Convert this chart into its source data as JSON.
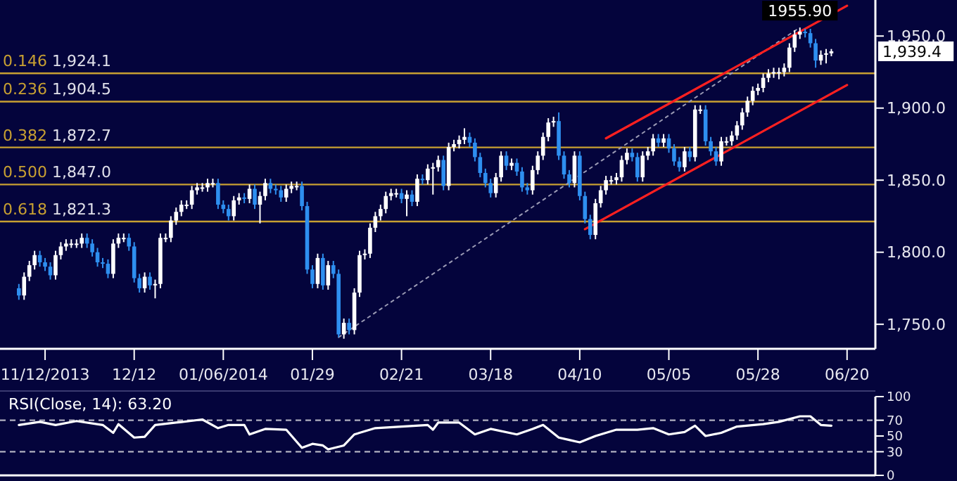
{
  "chart_data": [
    {
      "type": "candlestick",
      "categories": [
        null,
        null,
        null,
        null,
        null,
        "11/12/2013",
        null,
        null,
        null,
        null,
        null,
        null,
        null,
        null,
        null,
        null,
        null,
        null,
        null,
        null,
        null,
        null,
        "12/12",
        null,
        null,
        null,
        null,
        null,
        null,
        null,
        null,
        null,
        null,
        null,
        null,
        null,
        null,
        null,
        null,
        "01/06/2014",
        null,
        null,
        null,
        null,
        null,
        null,
        null,
        null,
        null,
        null,
        null,
        null,
        null,
        null,
        null,
        null,
        "01/29",
        null,
        null,
        null,
        null,
        null,
        null,
        null,
        null,
        null,
        null,
        null,
        null,
        null,
        null,
        null,
        null,
        "02/21",
        null,
        null,
        null,
        null,
        null,
        null,
        null,
        null,
        null,
        null,
        null,
        null,
        null,
        null,
        null,
        null,
        "03/18",
        null,
        null,
        null,
        null,
        null,
        null,
        null,
        null,
        null,
        null,
        null,
        null,
        null,
        null,
        null,
        null,
        "04/10",
        null,
        null,
        null,
        null,
        null,
        null,
        null,
        null,
        null,
        null,
        null,
        null,
        null,
        null,
        null,
        null,
        "05/05",
        null,
        null,
        null,
        null,
        null,
        null,
        null,
        null,
        null,
        null,
        null,
        null,
        null,
        null,
        null,
        null,
        "05/28",
        null,
        null,
        null,
        null,
        null,
        null,
        null,
        null,
        null,
        null,
        null,
        null,
        null,
        null,
        null,
        null,
        "06/20"
      ],
      "ohlc": [
        [
          1775,
          1778,
          1767,
          1770
        ],
        [
          1770,
          1786,
          1767,
          1783
        ],
        [
          1783,
          1794,
          1780,
          1791
        ],
        [
          1791,
          1801,
          1788,
          1798
        ],
        [
          1798,
          1801,
          1790,
          1793
        ],
        [
          1793,
          1796,
          1787,
          1790
        ],
        [
          1790,
          1793,
          1781,
          1784
        ],
        [
          1784,
          1801,
          1781,
          1798
        ],
        [
          1798,
          1807,
          1795,
          1804
        ],
        [
          1804,
          1809,
          1801,
          1806
        ],
        [
          1806,
          1809,
          1803,
          1806
        ],
        [
          1806,
          1809,
          1803,
          1806
        ],
        [
          1806,
          1813,
          1803,
          1810
        ],
        [
          1810,
          1813,
          1803,
          1806
        ],
        [
          1806,
          1809,
          1797,
          1800
        ],
        [
          1800,
          1803,
          1790,
          1793
        ],
        [
          1793,
          1796,
          1789,
          1792
        ],
        [
          1792,
          1795,
          1782,
          1785
        ],
        [
          1785,
          1809,
          1782,
          1806
        ],
        [
          1806,
          1813,
          1803,
          1810
        ],
        [
          1810,
          1813,
          1807,
          1810
        ],
        [
          1810,
          1813,
          1801,
          1804
        ],
        [
          1804,
          1807,
          1779,
          1782
        ],
        [
          1782,
          1785,
          1772,
          1775
        ],
        [
          1775,
          1786,
          1772,
          1783
        ],
        [
          1783,
          1786,
          1774,
          1777
        ],
        [
          1777,
          1781,
          1768,
          1778
        ],
        [
          1778,
          1813,
          1775,
          1810
        ],
        [
          1810,
          1813,
          1807,
          1810
        ],
        [
          1810,
          1825,
          1807,
          1822
        ],
        [
          1822,
          1831,
          1819,
          1828
        ],
        [
          1828,
          1836,
          1825,
          1833
        ],
        [
          1833,
          1836,
          1830,
          1833
        ],
        [
          1833,
          1846,
          1830,
          1843
        ],
        [
          1843,
          1848,
          1840,
          1845
        ],
        [
          1845,
          1848,
          1842,
          1845
        ],
        [
          1845,
          1851,
          1842,
          1848
        ],
        [
          1848,
          1851,
          1845,
          1848
        ],
        [
          1848,
          1851,
          1830,
          1833
        ],
        [
          1833,
          1836,
          1827,
          1830
        ],
        [
          1830,
          1833,
          1822,
          1825
        ],
        [
          1825,
          1839,
          1822,
          1836
        ],
        [
          1836,
          1841,
          1833,
          1838
        ],
        [
          1838,
          1841,
          1834,
          1837
        ],
        [
          1837,
          1847,
          1834,
          1844
        ],
        [
          1844,
          1847,
          1830,
          1833
        ],
        [
          1833,
          1842,
          1820,
          1839
        ],
        [
          1839,
          1851,
          1836,
          1848
        ],
        [
          1848,
          1851,
          1841,
          1844
        ],
        [
          1844,
          1847,
          1840,
          1843
        ],
        [
          1843,
          1846,
          1835,
          1838
        ],
        [
          1838,
          1847,
          1835,
          1844
        ],
        [
          1844,
          1849,
          1841,
          1846
        ],
        [
          1846,
          1849,
          1843,
          1846
        ],
        [
          1846,
          1849,
          1829,
          1832
        ],
        [
          1832,
          1835,
          1785,
          1788
        ],
        [
          1788,
          1791,
          1775,
          1778
        ],
        [
          1778,
          1799,
          1775,
          1796
        ],
        [
          1796,
          1799,
          1774,
          1777
        ],
        [
          1777,
          1794,
          1774,
          1791
        ],
        [
          1791,
          1794,
          1782,
          1785
        ],
        [
          1785,
          1788,
          1741,
          1743
        ],
        [
          1743,
          1754,
          1740,
          1751
        ],
        [
          1751,
          1754,
          1743,
          1746
        ],
        [
          1746,
          1775,
          1743,
          1772
        ],
        [
          1772,
          1801,
          1769,
          1798
        ],
        [
          1798,
          1802,
          1795,
          1799
        ],
        [
          1799,
          1820,
          1796,
          1817
        ],
        [
          1817,
          1828,
          1814,
          1825
        ],
        [
          1825,
          1833,
          1822,
          1830
        ],
        [
          1830,
          1842,
          1827,
          1839
        ],
        [
          1839,
          1844,
          1836,
          1841
        ],
        [
          1841,
          1844,
          1838,
          1841
        ],
        [
          1841,
          1844,
          1834,
          1837
        ],
        [
          1837,
          1843,
          1825,
          1840
        ],
        [
          1840,
          1843,
          1832,
          1835
        ],
        [
          1835,
          1854,
          1832,
          1851
        ],
        [
          1851,
          1854,
          1847,
          1850
        ],
        [
          1850,
          1861,
          1847,
          1858
        ],
        [
          1858,
          1862,
          1840,
          1859
        ],
        [
          1859,
          1867,
          1856,
          1864
        ],
        [
          1864,
          1867,
          1843,
          1846
        ],
        [
          1846,
          1876,
          1843,
          1873
        ],
        [
          1873,
          1878,
          1870,
          1875
        ],
        [
          1875,
          1881,
          1872,
          1878
        ],
        [
          1878,
          1886,
          1875,
          1880
        ],
        [
          1880,
          1883,
          1873,
          1876
        ],
        [
          1876,
          1879,
          1863,
          1866
        ],
        [
          1866,
          1869,
          1852,
          1855
        ],
        [
          1855,
          1858,
          1845,
          1848
        ],
        [
          1848,
          1851,
          1838,
          1841
        ],
        [
          1841,
          1855,
          1838,
          1852
        ],
        [
          1852,
          1870,
          1849,
          1867
        ],
        [
          1867,
          1870,
          1857,
          1860
        ],
        [
          1860,
          1865,
          1857,
          1862
        ],
        [
          1862,
          1865,
          1853,
          1856
        ],
        [
          1856,
          1859,
          1842,
          1845
        ],
        [
          1845,
          1848,
          1840,
          1843
        ],
        [
          1843,
          1860,
          1840,
          1857
        ],
        [
          1857,
          1870,
          1854,
          1867
        ],
        [
          1867,
          1883,
          1864,
          1880
        ],
        [
          1880,
          1893,
          1877,
          1890
        ],
        [
          1890,
          1894,
          1887,
          1891
        ],
        [
          1891,
          1897,
          1864,
          1867
        ],
        [
          1867,
          1870,
          1851,
          1854
        ],
        [
          1854,
          1857,
          1845,
          1848
        ],
        [
          1848,
          1870,
          1845,
          1867
        ],
        [
          1867,
          1870,
          1836,
          1839
        ],
        [
          1839,
          1842,
          1820,
          1823
        ],
        [
          1823,
          1826,
          1809,
          1812
        ],
        [
          1812,
          1837,
          1809,
          1834
        ],
        [
          1834,
          1846,
          1831,
          1843
        ],
        [
          1843,
          1853,
          1840,
          1850
        ],
        [
          1850,
          1853,
          1847,
          1850
        ],
        [
          1850,
          1855,
          1847,
          1852
        ],
        [
          1852,
          1867,
          1849,
          1864
        ],
        [
          1864,
          1872,
          1861,
          1869
        ],
        [
          1869,
          1872,
          1863,
          1866
        ],
        [
          1866,
          1869,
          1849,
          1852
        ],
        [
          1852,
          1870,
          1849,
          1867
        ],
        [
          1867,
          1873,
          1864,
          1870
        ],
        [
          1870,
          1882,
          1867,
          1879
        ],
        [
          1879,
          1882,
          1873,
          1876
        ],
        [
          1876,
          1882,
          1873,
          1879
        ],
        [
          1879,
          1882,
          1869,
          1872
        ],
        [
          1872,
          1875,
          1860,
          1863
        ],
        [
          1863,
          1866,
          1856,
          1859
        ],
        [
          1859,
          1873,
          1856,
          1870
        ],
        [
          1870,
          1873,
          1863,
          1866
        ],
        [
          1866,
          1902,
          1863,
          1899
        ],
        [
          1899,
          1902,
          1896,
          1899
        ],
        [
          1899,
          1902,
          1874,
          1877
        ],
        [
          1877,
          1880,
          1867,
          1870
        ],
        [
          1870,
          1873,
          1860,
          1863
        ],
        [
          1863,
          1880,
          1860,
          1877
        ],
        [
          1877,
          1880,
          1874,
          1877
        ],
        [
          1877,
          1884,
          1874,
          1881
        ],
        [
          1881,
          1891,
          1878,
          1888
        ],
        [
          1888,
          1900,
          1885,
          1897
        ],
        [
          1897,
          1908,
          1894,
          1905
        ],
        [
          1905,
          1915,
          1902,
          1912
        ],
        [
          1912,
          1917,
          1909,
          1914
        ],
        [
          1914,
          1924,
          1911,
          1921
        ],
        [
          1921,
          1927,
          1918,
          1924
        ],
        [
          1924,
          1928,
          1921,
          1925
        ],
        [
          1925,
          1928,
          1920,
          1925
        ],
        [
          1925,
          1931,
          1922,
          1928
        ],
        [
          1928,
          1945,
          1925,
          1942
        ],
        [
          1942,
          1954,
          1939,
          1951
        ],
        [
          1951,
          1955.9,
          1948,
          1953
        ],
        [
          1953,
          1955,
          1949,
          1952
        ],
        [
          1952,
          1955,
          1942,
          1945
        ],
        [
          1945,
          1948,
          1928,
          1933
        ],
        [
          1933,
          1940,
          1930,
          1937
        ],
        [
          1937,
          1941,
          1931,
          1938
        ],
        [
          1938,
          1941,
          1936,
          1939.4
        ],
        null,
        null,
        null
      ],
      "ylim": [
        1733,
        1975
      ],
      "yticks": [
        {
          "value": 1750,
          "label": "1,750.0"
        },
        {
          "value": 1800,
          "label": "1,800.0"
        },
        {
          "value": 1850,
          "label": "1,850.0"
        },
        {
          "value": 1900,
          "label": "1,900.0"
        },
        {
          "value": 1950,
          "label": "1,950.0"
        }
      ],
      "ref_lines": [
        {
          "axis": "y",
          "value": 1924.1,
          "label": "0.146 1,924.1",
          "color": "#c8a032"
        },
        {
          "axis": "y",
          "value": 1904.5,
          "label": "0.236 1,904.5",
          "color": "#c8a032"
        },
        {
          "axis": "y",
          "value": 1872.7,
          "label": "0.382 1,872.7",
          "color": "#c8a032"
        },
        {
          "axis": "y",
          "value": 1847.0,
          "label": "0.500 1,847.0",
          "color": "#c8a032"
        },
        {
          "axis": "y",
          "value": 1821.3,
          "label": "0.618 1,821.3",
          "color": "#c8a032"
        }
      ],
      "series": [
        {
          "type": "line",
          "color": "#9a9ab4",
          "line_style": "dotted",
          "values": [
            null,
            null,
            null,
            null,
            null,
            null,
            null,
            null,
            null,
            null,
            null,
            null,
            null,
            null,
            null,
            null,
            null,
            null,
            null,
            null,
            null,
            null,
            null,
            null,
            null,
            null,
            null,
            null,
            null,
            null,
            null,
            null,
            null,
            null,
            null,
            null,
            null,
            null,
            null,
            null,
            null,
            null,
            null,
            null,
            null,
            null,
            null,
            null,
            null,
            null,
            null,
            null,
            null,
            null,
            null,
            null,
            null,
            null,
            null,
            null,
            null,
            1741,
            null,
            null,
            null,
            null,
            null,
            null,
            null,
            null,
            null,
            null,
            null,
            null,
            null,
            null,
            null,
            null,
            null,
            null,
            null,
            null,
            null,
            null,
            null,
            null,
            null,
            null,
            null,
            null,
            null,
            null,
            null,
            null,
            null,
            null,
            null,
            null,
            null,
            null,
            null,
            null,
            null,
            null,
            null,
            null,
            null,
            null,
            null,
            null,
            null,
            null,
            null,
            null,
            null,
            null,
            null,
            null,
            null,
            null,
            null,
            null,
            null,
            null,
            null,
            null,
            null,
            null,
            null,
            null,
            null,
            null,
            null,
            null,
            null,
            null,
            null,
            null,
            null,
            null,
            null,
            null,
            null,
            null,
            null,
            null,
            null,
            null,
            null,
            1956,
            null,
            null,
            null,
            null,
            null,
            null,
            null,
            null,
            null
          ]
        },
        {
          "type": "line",
          "color": "#ff2020",
          "line_style": "solid",
          "values": [
            null,
            null,
            null,
            null,
            null,
            null,
            null,
            null,
            null,
            null,
            null,
            null,
            null,
            null,
            null,
            null,
            null,
            null,
            null,
            null,
            null,
            null,
            null,
            null,
            null,
            null,
            null,
            null,
            null,
            null,
            null,
            null,
            null,
            null,
            null,
            null,
            null,
            null,
            null,
            null,
            null,
            null,
            null,
            null,
            null,
            null,
            null,
            null,
            null,
            null,
            null,
            null,
            null,
            null,
            null,
            null,
            null,
            null,
            null,
            null,
            null,
            null,
            null,
            null,
            null,
            null,
            null,
            null,
            null,
            null,
            null,
            null,
            null,
            null,
            null,
            null,
            null,
            null,
            null,
            null,
            null,
            null,
            null,
            null,
            null,
            null,
            null,
            null,
            null,
            null,
            null,
            null,
            null,
            null,
            null,
            null,
            null,
            null,
            null,
            null,
            null,
            null,
            null,
            null,
            null,
            null,
            null,
            null,
            null,
            null,
            null,
            null,
            1879,
            null,
            null,
            null,
            null,
            null,
            null,
            null,
            null,
            null,
            null,
            null,
            null,
            null,
            null,
            null,
            null,
            null,
            null,
            null,
            null,
            null,
            null,
            null,
            null,
            null,
            null,
            null,
            null,
            null,
            null,
            null,
            null,
            null,
            null,
            null,
            null,
            null,
            null,
            null,
            null,
            null,
            null,
            null,
            null,
            null,
            1971
          ]
        },
        {
          "type": "line",
          "color": "#ff2020",
          "line_style": "solid",
          "values": [
            null,
            null,
            null,
            null,
            null,
            null,
            null,
            null,
            null,
            null,
            null,
            null,
            null,
            null,
            null,
            null,
            null,
            null,
            null,
            null,
            null,
            null,
            null,
            null,
            null,
            null,
            null,
            null,
            null,
            null,
            null,
            null,
            null,
            null,
            null,
            null,
            null,
            null,
            null,
            null,
            null,
            null,
            null,
            null,
            null,
            null,
            null,
            null,
            null,
            null,
            null,
            null,
            null,
            null,
            null,
            null,
            null,
            null,
            null,
            null,
            null,
            null,
            null,
            null,
            null,
            null,
            null,
            null,
            null,
            null,
            null,
            null,
            null,
            null,
            null,
            null,
            null,
            null,
            null,
            null,
            null,
            null,
            null,
            null,
            null,
            null,
            null,
            null,
            null,
            null,
            null,
            null,
            null,
            null,
            null,
            null,
            null,
            null,
            null,
            null,
            null,
            null,
            null,
            null,
            null,
            null,
            null,
            null,
            1816,
            null,
            null,
            null,
            null,
            null,
            null,
            null,
            null,
            null,
            null,
            null,
            null,
            null,
            null,
            null,
            null,
            null,
            null,
            null,
            null,
            null,
            null,
            null,
            null,
            null,
            null,
            null,
            null,
            null,
            null,
            null,
            null,
            null,
            null,
            null,
            null,
            null,
            null,
            null,
            null,
            null,
            null,
            null,
            null,
            null,
            null,
            null,
            null,
            null,
            1916
          ]
        }
      ],
      "annotations": [
        {
          "text": "1955.90",
          "y": 1955.9
        },
        "1,939.4"
      ]
    },
    {
      "type": "line",
      "title": "RSI(Close, 14): 63.20",
      "categories": [
        null,
        null,
        null,
        null,
        null,
        null,
        null,
        null,
        null,
        null,
        null,
        null,
        null,
        null,
        null,
        null,
        null,
        null,
        null,
        null,
        null,
        null,
        null,
        null,
        null,
        null,
        null,
        null,
        null,
        null,
        null,
        null,
        null,
        null,
        null,
        null,
        null,
        null,
        null,
        null,
        null,
        null,
        null,
        null,
        null,
        null,
        null,
        null,
        null,
        null,
        null,
        null,
        null,
        null,
        null,
        null,
        null,
        null,
        null,
        null,
        null,
        null,
        null,
        null,
        null,
        null,
        null,
        null,
        null,
        null,
        null,
        null,
        null,
        null,
        null,
        null,
        null,
        null,
        null,
        null,
        null,
        null,
        null,
        null,
        null,
        null,
        null,
        null,
        null,
        null,
        null,
        null,
        null,
        null,
        null,
        null,
        null,
        null,
        null,
        null,
        null,
        null,
        null,
        null,
        null,
        null,
        null,
        null,
        null,
        null,
        null,
        null,
        null,
        null,
        null,
        null,
        null,
        null,
        null,
        null,
        null,
        null,
        null,
        null,
        null,
        null,
        null,
        null,
        null,
        null,
        null,
        null,
        null,
        null,
        null,
        null,
        null,
        null,
        null,
        null,
        null,
        null,
        null,
        null,
        null,
        null,
        null,
        null,
        null,
        null,
        null,
        null,
        null,
        null,
        null,
        null,
        null,
        null,
        null
      ],
      "values": [
        64,
        null,
        null,
        null,
        68,
        null,
        null,
        64,
        null,
        null,
        null,
        69,
        null,
        null,
        null,
        null,
        64,
        null,
        54,
        65,
        null,
        null,
        48,
        null,
        49,
        null,
        64,
        null,
        null,
        null,
        67,
        null,
        null,
        null,
        null,
        71,
        null,
        null,
        60,
        null,
        64,
        null,
        null,
        64,
        52,
        null,
        null,
        59,
        null,
        null,
        null,
        58,
        null,
        null,
        35,
        null,
        40,
        null,
        38,
        33,
        null,
        null,
        38,
        null,
        52,
        null,
        null,
        null,
        60,
        null,
        null,
        null,
        null,
        62,
        null,
        null,
        null,
        null,
        64,
        58,
        67,
        null,
        null,
        null,
        67,
        null,
        null,
        52,
        null,
        null,
        59,
        null,
        null,
        null,
        null,
        52,
        null,
        null,
        59,
        null,
        64,
        null,
        null,
        48,
        null,
        45,
        null,
        42,
        null,
        null,
        50,
        null,
        null,
        null,
        58,
        null,
        null,
        null,
        58,
        null,
        null,
        60,
        null,
        null,
        52,
        null,
        null,
        55,
        null,
        63,
        null,
        50,
        null,
        null,
        54,
        null,
        null,
        62,
        null,
        null,
        null,
        null,
        65,
        null,
        null,
        68,
        null,
        null,
        null,
        75,
        null,
        75,
        null,
        64,
        null,
        63,
        null,
        null,
        null
      ],
      "color": "#ffffff",
      "ylim": [
        0,
        100
      ],
      "yticks": [
        0,
        30,
        50,
        70,
        100
      ],
      "ref_lines": [
        {
          "axis": "y",
          "value": 70,
          "color": "#b0b0c0",
          "line_style": "dashed"
        },
        {
          "axis": "y",
          "value": 30,
          "color": "#b0b0c0",
          "line_style": "dashed"
        }
      ],
      "tick_labels": "y"
    }
  ]
}
